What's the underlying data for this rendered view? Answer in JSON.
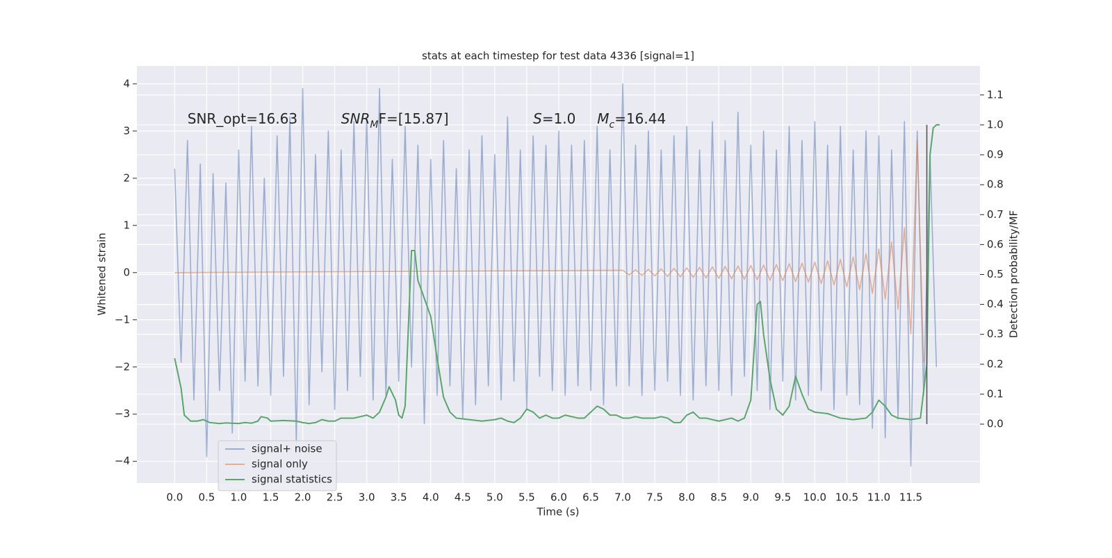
{
  "chart_data": {
    "type": "line",
    "title": "stats at each timestep for test data 4336 [signal=1]",
    "xlabel": "Time (s)",
    "ylabel": "Whitened strain",
    "y2label": "Detection probability/MF",
    "xlim": [
      -0.59,
      12.58
    ],
    "ylim": [
      -4.46,
      4.38
    ],
    "y2lim": [
      -0.197,
      1.197
    ],
    "xticks": [
      {
        "value": 0,
        "label": "0.0"
      },
      {
        "value": 0.5,
        "label": "0.5"
      },
      {
        "value": 1,
        "label": "1.0"
      },
      {
        "value": 1.5,
        "label": "1.5"
      },
      {
        "value": 2,
        "label": "2.0"
      },
      {
        "value": 2.5,
        "label": "2.5"
      },
      {
        "value": 3,
        "label": "3.0"
      },
      {
        "value": 3.5,
        "label": "3.5"
      },
      {
        "value": 4,
        "label": "4.0"
      },
      {
        "value": 4.5,
        "label": "4.5"
      },
      {
        "value": 5,
        "label": "5.0"
      },
      {
        "value": 5.5,
        "label": "5.5"
      },
      {
        "value": 6,
        "label": "6.0"
      },
      {
        "value": 6.5,
        "label": "6.5"
      },
      {
        "value": 7,
        "label": "7.0"
      },
      {
        "value": 7.5,
        "label": "7.5"
      },
      {
        "value": 8,
        "label": "8.0"
      },
      {
        "value": 8.5,
        "label": "8.5"
      },
      {
        "value": 9,
        "label": "9.0"
      },
      {
        "value": 9.5,
        "label": "9.5"
      },
      {
        "value": 10,
        "label": "10.0"
      },
      {
        "value": 10.5,
        "label": "10.5"
      },
      {
        "value": 11,
        "label": "11.0"
      },
      {
        "value": 11.5,
        "label": "11.5"
      }
    ],
    "yticks": [
      {
        "value": -4,
        "label": "−4"
      },
      {
        "value": -3,
        "label": "−3"
      },
      {
        "value": -2,
        "label": "−2"
      },
      {
        "value": -1,
        "label": "−1"
      },
      0,
      1,
      2,
      3,
      4
    ],
    "y2ticks": [
      {
        "value": 0,
        "label": "0.0"
      },
      {
        "value": 0.1,
        "label": "0.1"
      },
      {
        "value": 0.2,
        "label": "0.2"
      },
      {
        "value": 0.3,
        "label": "0.3"
      },
      {
        "value": 0.4,
        "label": "0.4"
      },
      {
        "value": 0.5,
        "label": "0.5"
      },
      {
        "value": 0.6,
        "label": "0.6"
      },
      {
        "value": 0.7,
        "label": "0.7"
      },
      {
        "value": 0.8,
        "label": "0.8"
      },
      {
        "value": 0.9,
        "label": "0.9"
      },
      {
        "value": 1.0,
        "label": "1.0"
      },
      {
        "value": 1.1,
        "label": "1.1"
      }
    ],
    "grid": true,
    "legend": "lower left",
    "series": [
      {
        "name": "signal+ noise",
        "color": "#4c72b0",
        "opacity": 0.5,
        "x": [
          0,
          0.1,
          0.2,
          0.3,
          0.4,
          0.5,
          0.6,
          0.7,
          0.8,
          0.9,
          1,
          1.1,
          1.2,
          1.3,
          1.4,
          1.5,
          1.6,
          1.7,
          1.8,
          1.9,
          2,
          2.1,
          2.2,
          2.3,
          2.4,
          2.5,
          2.6,
          2.7,
          2.8,
          2.9,
          3,
          3.1,
          3.2,
          3.3,
          3.4,
          3.5,
          3.6,
          3.7,
          3.8,
          3.9,
          4,
          4.1,
          4.2,
          4.3,
          4.4,
          4.5,
          4.6,
          4.7,
          4.8,
          4.9,
          5,
          5.1,
          5.2,
          5.3,
          5.4,
          5.5,
          5.6,
          5.7,
          5.8,
          5.9,
          6,
          6.1,
          6.2,
          6.3,
          6.4,
          6.5,
          6.6,
          6.7,
          6.8,
          6.9,
          7,
          7.1,
          7.2,
          7.3,
          7.4,
          7.5,
          7.6,
          7.7,
          7.8,
          7.9,
          8,
          8.1,
          8.2,
          8.3,
          8.4,
          8.5,
          8.6,
          8.7,
          8.8,
          8.9,
          9,
          9.1,
          9.2,
          9.3,
          9.4,
          9.5,
          9.6,
          9.7,
          9.8,
          9.9,
          10,
          10.1,
          10.2,
          10.3,
          10.4,
          10.5,
          10.6,
          10.7,
          10.8,
          10.9,
          11,
          11.1,
          11.2,
          11.3,
          11.4,
          11.5,
          11.6,
          11.7,
          11.8,
          11.9
        ],
        "values": [
          2.2,
          -1.9,
          2.8,
          -2.7,
          2.3,
          -3.9,
          2.1,
          -2.5,
          1.9,
          -3.4,
          2.6,
          -2.3,
          3.1,
          -2.4,
          2.0,
          -2.6,
          2.9,
          -2.2,
          3.3,
          -3.6,
          3.9,
          -2.8,
          2.5,
          -2.1,
          3.0,
          -2.9,
          2.6,
          -2.5,
          3.2,
          -2.2,
          3.3,
          -2.7,
          3.9,
          -2.6,
          2.4,
          -2.3,
          3.1,
          -2.0,
          2.7,
          -3.2,
          2.4,
          -2.6,
          2.8,
          -2.4,
          2.2,
          -3.1,
          2.6,
          -2.8,
          2.9,
          -2.4,
          2.5,
          -2.7,
          3.3,
          -2.3,
          2.6,
          -2.9,
          2.9,
          -2.2,
          2.7,
          -2.5,
          3.0,
          -2.6,
          2.7,
          -2.4,
          2.8,
          -2.5,
          3.1,
          -2.8,
          2.6,
          -2.4,
          4.0,
          -2.4,
          2.7,
          -2.6,
          3.0,
          -2.5,
          2.6,
          -2.3,
          2.9,
          -2.6,
          3.1,
          -2.7,
          2.6,
          -2.4,
          3.2,
          -2.5,
          2.8,
          -2.6,
          3.4,
          -2.2,
          2.7,
          -2.5,
          3.0,
          -2.9,
          2.6,
          -2.3,
          3.1,
          -2.7,
          2.8,
          -2.6,
          3.2,
          -2.5,
          2.7,
          -2.9,
          3.1,
          -2.6,
          2.6,
          -2.8,
          3.0,
          -3.3,
          2.9,
          -3.5,
          2.6,
          -3.1,
          3.2,
          -4.1,
          3.0,
          -2.6,
          2.5,
          -2.0
        ]
      },
      {
        "name": "signal only",
        "color": "#dd8452",
        "opacity": 0.6,
        "x": [
          0,
          7,
          7.1,
          7.2,
          7.3,
          7.4,
          7.5,
          7.6,
          7.7,
          7.8,
          7.9,
          8,
          8.1,
          8.2,
          8.3,
          8.4,
          8.5,
          8.6,
          8.7,
          8.8,
          8.9,
          9,
          9.1,
          9.2,
          9.3,
          9.4,
          9.5,
          9.6,
          9.7,
          9.8,
          9.9,
          10,
          10.1,
          10.2,
          10.3,
          10.4,
          10.5,
          10.6,
          10.7,
          10.8,
          10.9,
          11,
          11.1,
          11.2,
          11.3,
          11.4,
          11.5,
          11.6,
          11.7
        ],
        "values": [
          0,
          0.05,
          -0.05,
          0.06,
          -0.06,
          0.07,
          -0.07,
          0.08,
          -0.08,
          0.09,
          -0.09,
          0.1,
          -0.1,
          0.11,
          -0.11,
          0.12,
          -0.12,
          0.13,
          -0.13,
          0.14,
          -0.14,
          0.15,
          -0.15,
          0.16,
          -0.16,
          0.17,
          -0.17,
          0.19,
          -0.19,
          0.2,
          -0.2,
          0.22,
          -0.23,
          0.25,
          -0.26,
          0.28,
          -0.3,
          0.33,
          -0.36,
          0.4,
          -0.44,
          0.5,
          -0.56,
          0.65,
          -0.78,
          0.95,
          -1.3,
          2.8,
          -1.9
        ]
      },
      {
        "name": "signal statistics",
        "color": "#55a868",
        "opacity": 1,
        "axis": "y2",
        "x": [
          0,
          0.1,
          0.15,
          0.25,
          0.35,
          0.45,
          0.55,
          0.7,
          0.8,
          1.0,
          1.1,
          1.2,
          1.3,
          1.35,
          1.45,
          1.5,
          1.7,
          1.9,
          2.0,
          2.1,
          2.2,
          2.3,
          2.4,
          2.5,
          2.6,
          2.8,
          2.9,
          3.0,
          3.1,
          3.2,
          3.3,
          3.35,
          3.45,
          3.5,
          3.55,
          3.6,
          3.7,
          3.75,
          3.8,
          3.9,
          4.0,
          4.1,
          4.2,
          4.3,
          4.4,
          4.6,
          4.8,
          5.0,
          5.1,
          5.2,
          5.3,
          5.4,
          5.5,
          5.6,
          5.7,
          5.8,
          5.9,
          6.0,
          6.1,
          6.3,
          6.4,
          6.5,
          6.6,
          6.7,
          6.8,
          6.9,
          7.0,
          7.1,
          7.2,
          7.3,
          7.5,
          7.6,
          7.7,
          7.8,
          7.9,
          8.0,
          8.1,
          8.2,
          8.3,
          8.5,
          8.6,
          8.7,
          8.8,
          8.9,
          9.0,
          9.1,
          9.15,
          9.2,
          9.3,
          9.4,
          9.5,
          9.6,
          9.7,
          9.8,
          9.9,
          10.0,
          10.2,
          10.4,
          10.6,
          10.8,
          10.9,
          11.0,
          11.1,
          11.2,
          11.3,
          11.5,
          11.65,
          11.75,
          11.8,
          11.85,
          11.9,
          11.95
        ],
        "values": [
          0.22,
          0.12,
          0.03,
          0.01,
          0.01,
          0.015,
          0.005,
          0.002,
          0.004,
          0.002,
          0.005,
          0.003,
          0.01,
          0.025,
          0.02,
          0.01,
          0.012,
          0.01,
          0.005,
          0.002,
          0.005,
          0.015,
          0.01,
          0.01,
          0.02,
          0.02,
          0.025,
          0.03,
          0.02,
          0.04,
          0.09,
          0.125,
          0.08,
          0.03,
          0.02,
          0.06,
          0.58,
          0.58,
          0.48,
          0.42,
          0.36,
          0.22,
          0.09,
          0.04,
          0.02,
          0.015,
          0.01,
          0.015,
          0.02,
          0.01,
          0.005,
          0.02,
          0.05,
          0.04,
          0.02,
          0.03,
          0.02,
          0.02,
          0.03,
          0.02,
          0.02,
          0.04,
          0.06,
          0.05,
          0.03,
          0.03,
          0.02,
          0.02,
          0.025,
          0.02,
          0.02,
          0.025,
          0.02,
          0.005,
          0.005,
          0.03,
          0.04,
          0.02,
          0.02,
          0.01,
          0.015,
          0.02,
          0.01,
          0.02,
          0.08,
          0.4,
          0.41,
          0.3,
          0.15,
          0.05,
          0.03,
          0.06,
          0.16,
          0.1,
          0.05,
          0.04,
          0.035,
          0.02,
          0.015,
          0.02,
          0.04,
          0.08,
          0.06,
          0.03,
          0.02,
          0.015,
          0.02,
          0.2,
          0.9,
          0.99,
          1.0,
          1.0
        ]
      }
    ],
    "vline": {
      "x": 11.75,
      "y2min": 0,
      "y2max": 1.0,
      "color": "#555555"
    },
    "annotations": [
      {
        "x": 0.2,
        "y": 3.25,
        "parts": [
          {
            "text": "SNR_opt=16.63"
          }
        ]
      },
      {
        "x": 2.6,
        "y": 3.25,
        "parts": [
          {
            "text": "SNR",
            "italic": true
          },
          {
            "text": "M",
            "italic": true,
            "sub": true
          },
          {
            "text": "F=[15.87]"
          }
        ]
      },
      {
        "x": 5.6,
        "y": 3.25,
        "parts": [
          {
            "text": "S",
            "italic": true
          },
          {
            "text": "=1.0"
          }
        ]
      },
      {
        "x": 6.6,
        "y": 3.25,
        "parts": [
          {
            "text": "M",
            "italic": true
          },
          {
            "text": "c",
            "italic": true,
            "sub": true
          },
          {
            "text": "=16.44"
          }
        ]
      }
    ]
  }
}
